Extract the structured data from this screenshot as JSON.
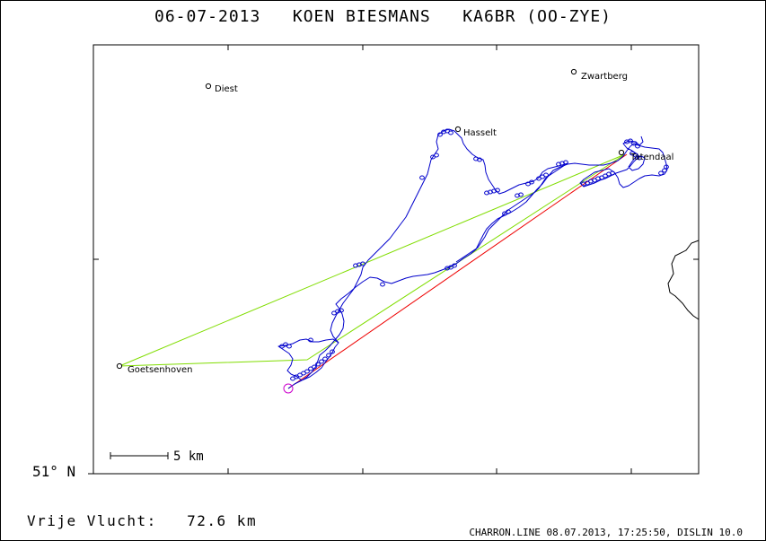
{
  "title": {
    "date": "06-07-2013",
    "pilot": "KOEN BIESMANS",
    "glider": "KA6BR (OO-ZYE)"
  },
  "latitude_label": "51° N",
  "distance": {
    "label": "Vrije Vlucht:",
    "value": "72.6 km"
  },
  "scale_bar": {
    "label": "5 km",
    "km": 5
  },
  "footer": "CHARRON.LINE 08.07.2013, 17:25:50, DISLIN 10.0",
  "places": [
    {
      "name": "Diest"
    },
    {
      "name": "Zwartberg"
    },
    {
      "name": "Hasselt"
    },
    {
      "name": "Tatendaal"
    },
    {
      "name": "Goetsenhoven"
    }
  ],
  "colors": {
    "track": "#0000cc",
    "task_leg": "#80dd00",
    "free_flight_leg": "#ee0000",
    "start_marker": "#cc00cc",
    "border": "#000000"
  }
}
